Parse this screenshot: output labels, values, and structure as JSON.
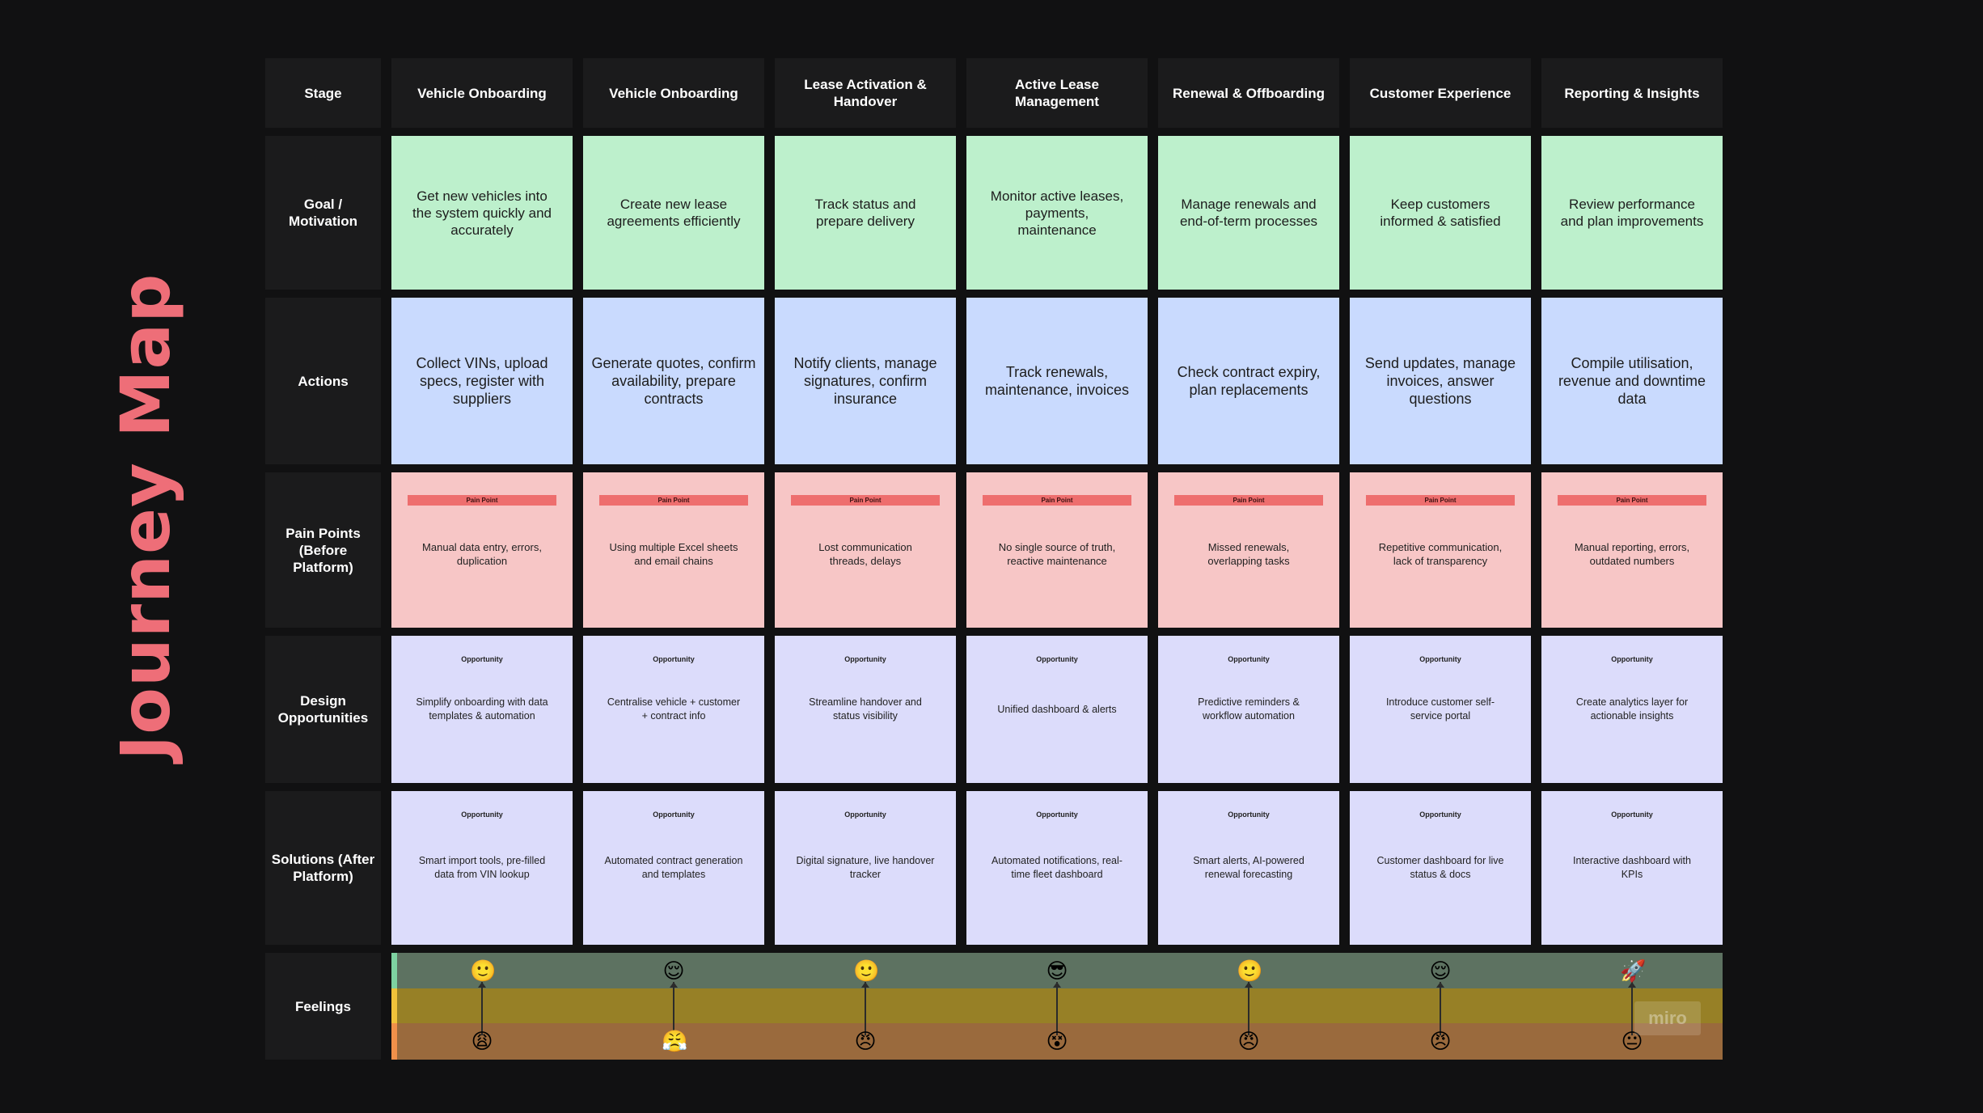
{
  "title": "Journey Map",
  "row_labels": {
    "stage": "Stage",
    "goal": "Goal / Motivation",
    "actions": "Actions",
    "pain": "Pain Points (Before Platform)",
    "design": "Design Opportunities",
    "solutions": "Solutions (After Platform)",
    "feelings": "Feelings"
  },
  "pain_tag": "Pain Point",
  "opportunity_tag": "Opportunity",
  "stages": [
    "Vehicle Onboarding",
    "Vehicle Onboarding",
    "Lease Activation & Handover",
    "Active Lease Management",
    "Renewal & Offboarding",
    "Customer Experience",
    "Reporting & Insights"
  ],
  "goals": [
    "Get new vehicles into the system quickly and accurately",
    "Create new lease agreements efficiently",
    "Track status and prepare delivery",
    "Monitor active leases, payments, maintenance",
    "Manage renewals and end-of-term processes",
    "Keep customers informed & satisfied",
    "Review performance and plan improvements"
  ],
  "actions": [
    "Collect VINs, upload specs, register with suppliers",
    "Generate quotes, confirm availability, prepare contracts",
    "Notify clients, manage signatures, confirm insurance",
    "Track renewals, maintenance, invoices",
    "Check contract expiry, plan replacements",
    "Send updates, manage invoices, answer questions",
    "Compile utilisation, revenue and downtime data"
  ],
  "pain_points": [
    "Manual data entry, errors, duplication",
    "Using multiple Excel sheets and email chains",
    "Lost communication threads, delays",
    "No single source of truth, reactive maintenance",
    "Missed renewals, overlapping tasks",
    "Repetitive communication, lack of transparency",
    "Manual reporting, errors, outdated numbers"
  ],
  "design_opportunities": [
    "Simplify onboarding with data templates & automation",
    "Centralise vehicle + customer + contract info",
    "Streamline handover and status visibility",
    "Unified dashboard & alerts",
    "Predictive reminders & workflow automation",
    "Introduce customer self-service portal",
    "Create analytics layer for actionable insights"
  ],
  "solutions": [
    "Smart import tools, pre-filled data from VIN lookup",
    "Automated contract generation and templates",
    "Digital signature, live handover tracker",
    "Automated notifications, real-time fleet dashboard",
    "Smart alerts, AI-powered renewal forecasting",
    "Customer dashboard for live status & docs",
    "Interactive dashboard with KPIs"
  ],
  "feelings_after": [
    "🙂",
    "😌",
    "🙂",
    "😎",
    "🙂",
    "😌",
    "🚀"
  ],
  "feelings_before": [
    "😩",
    "😤",
    "😠",
    "😵",
    "😠",
    "😠",
    "😐"
  ],
  "watermark": "miro",
  "colors": {
    "title": "#ee6e78",
    "goal": "#bdf0cc",
    "action": "#c9dafe",
    "pain": "#f7c6c6",
    "pain_tag": "#ee6e6e",
    "opportunity": "#dcdcfb"
  }
}
